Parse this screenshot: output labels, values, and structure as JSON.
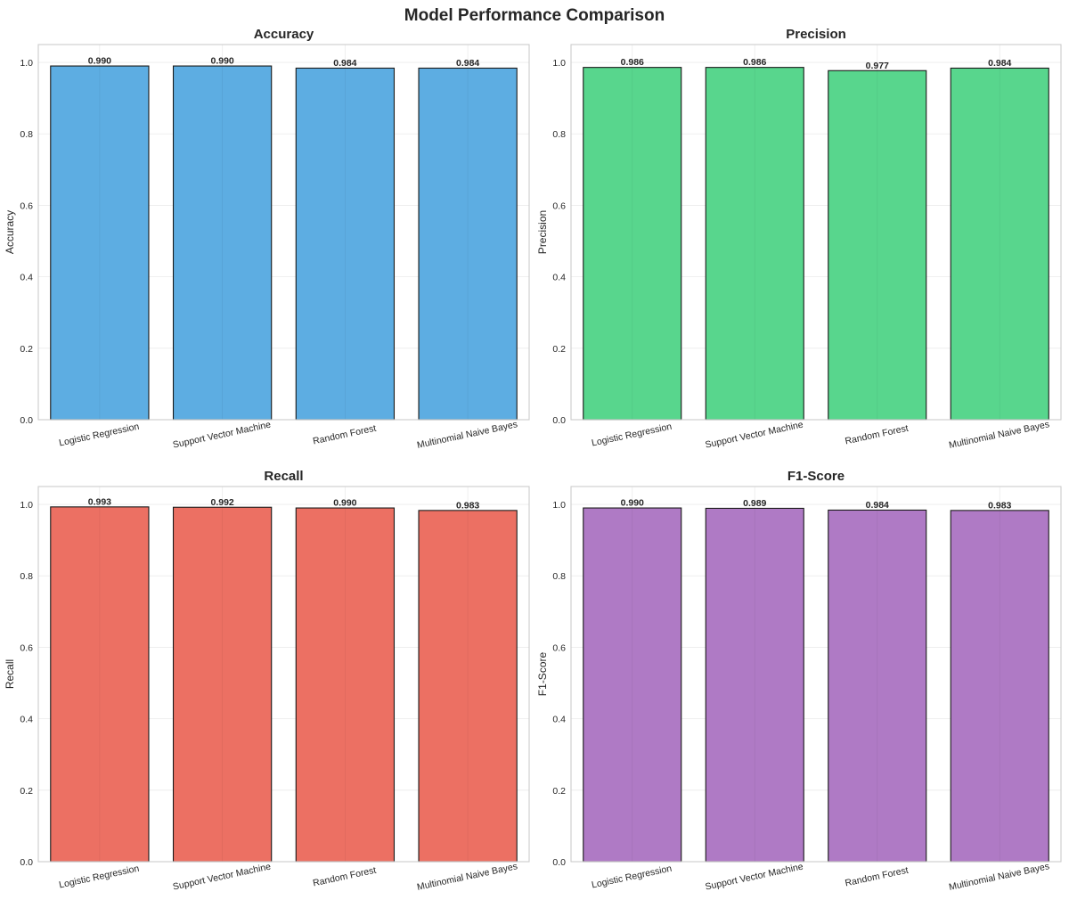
{
  "suptitle": "Model Performance Comparison",
  "chart_data": [
    {
      "type": "bar",
      "title": "Accuracy",
      "ylabel": "Accuracy",
      "xlabel": "",
      "categories": [
        "Logistic Regression",
        "Support Vector Machine",
        "Random Forest",
        "Multinomial Naive Bayes"
      ],
      "values": [
        0.99,
        0.99,
        0.984,
        0.984
      ],
      "value_labels": [
        "0.990",
        "0.990",
        "0.984",
        "0.984"
      ],
      "ylim": [
        0,
        1.05
      ],
      "yticks": [
        "0.0",
        "0.2",
        "0.4",
        "0.6",
        "0.8",
        "1.0"
      ],
      "color": "#5dade2",
      "grid": true
    },
    {
      "type": "bar",
      "title": "Precision",
      "ylabel": "Precision",
      "xlabel": "",
      "categories": [
        "Logistic Regression",
        "Support Vector Machine",
        "Random Forest",
        "Multinomial Naive Bayes"
      ],
      "values": [
        0.986,
        0.986,
        0.977,
        0.984
      ],
      "value_labels": [
        "0.986",
        "0.986",
        "0.977",
        "0.984"
      ],
      "ylim": [
        0,
        1.05
      ],
      "yticks": [
        "0.0",
        "0.2",
        "0.4",
        "0.6",
        "0.8",
        "1.0"
      ],
      "color": "#58d68d",
      "grid": true
    },
    {
      "type": "bar",
      "title": "Recall",
      "ylabel": "Recall",
      "xlabel": "",
      "categories": [
        "Logistic Regression",
        "Support Vector Machine",
        "Random Forest",
        "Multinomial Naive Bayes"
      ],
      "values": [
        0.993,
        0.992,
        0.99,
        0.983
      ],
      "value_labels": [
        "0.993",
        "0.992",
        "0.990",
        "0.983"
      ],
      "ylim": [
        0,
        1.05
      ],
      "yticks": [
        "0.0",
        "0.2",
        "0.4",
        "0.6",
        "0.8",
        "1.0"
      ],
      "color": "#ec7063",
      "grid": true
    },
    {
      "type": "bar",
      "title": "F1-Score",
      "ylabel": "F1-Score",
      "xlabel": "",
      "categories": [
        "Logistic Regression",
        "Support Vector Machine",
        "Random Forest",
        "Multinomial Naive Bayes"
      ],
      "values": [
        0.99,
        0.989,
        0.984,
        0.983
      ],
      "value_labels": [
        "0.990",
        "0.989",
        "0.984",
        "0.983"
      ],
      "ylim": [
        0,
        1.05
      ],
      "yticks": [
        "0.0",
        "0.2",
        "0.4",
        "0.6",
        "0.8",
        "1.0"
      ],
      "color": "#af7ac5",
      "grid": true
    }
  ]
}
